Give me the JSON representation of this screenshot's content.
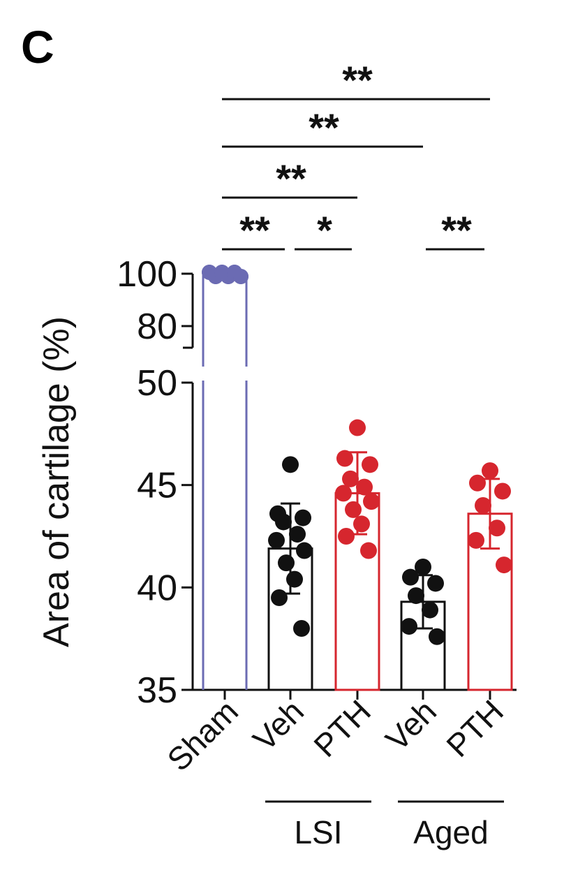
{
  "panel_label": "C",
  "colors": {
    "sham": "#6b6bb3",
    "veh": "#111111",
    "pth": "#d6262e",
    "axis": "#111111"
  },
  "chart_data": {
    "type": "bar",
    "ylabel": "Area of cartilage (%)",
    "y_axis_break": {
      "lower_range": [
        35,
        50
      ],
      "upper_range": [
        80,
        100
      ]
    },
    "lower_ticks": [
      "35",
      "40",
      "45",
      "50"
    ],
    "upper_ticks": [
      "80",
      "100"
    ],
    "categories": [
      "Sham",
      "Veh",
      "PTH",
      "Veh",
      "PTH"
    ],
    "groups": [
      {
        "label": "LSI",
        "categories": [
          1,
          2
        ]
      },
      {
        "label": "Aged",
        "categories": [
          3,
          4
        ]
      }
    ],
    "bars": [
      {
        "category": "Sham",
        "mean": 100,
        "sd": 0,
        "color_key": "sham",
        "points": [
          100,
          100,
          100,
          100,
          100,
          100,
          100,
          100,
          100,
          100,
          100,
          100
        ]
      },
      {
        "category": "Veh",
        "group": "LSI",
        "mean": 41.9,
        "sd": 2.2,
        "color_key": "veh",
        "points": [
          46.0,
          43.6,
          43.4,
          43.2,
          42.6,
          42.3,
          41.8,
          41.2,
          40.4,
          39.5,
          38.0
        ]
      },
      {
        "category": "PTH",
        "group": "LSI",
        "mean": 44.6,
        "sd": 2.0,
        "color_key": "pth",
        "points": [
          47.8,
          46.3,
          46.0,
          45.3,
          44.9,
          44.6,
          44.2,
          43.8,
          43.1,
          42.5,
          41.8
        ]
      },
      {
        "category": "Veh",
        "group": "Aged",
        "mean": 39.3,
        "sd": 1.3,
        "color_key": "veh",
        "points": [
          41.0,
          40.5,
          40.2,
          39.6,
          38.9,
          38.1,
          37.6
        ]
      },
      {
        "category": "PTH",
        "group": "Aged",
        "mean": 43.6,
        "sd": 1.7,
        "color_key": "pth",
        "points": [
          45.7,
          45.1,
          44.7,
          44.0,
          42.9,
          42.3,
          41.1
        ]
      }
    ],
    "significance": [
      {
        "from": 0,
        "to": 4,
        "label": "**"
      },
      {
        "from": 0,
        "to": 3,
        "label": "**"
      },
      {
        "from": 0,
        "to": 2,
        "label": "**"
      },
      {
        "from": 0,
        "to": 1,
        "label": "**"
      },
      {
        "from": 1,
        "to": 2,
        "label": "*"
      },
      {
        "from": 3,
        "to": 4,
        "label": "**"
      }
    ]
  }
}
